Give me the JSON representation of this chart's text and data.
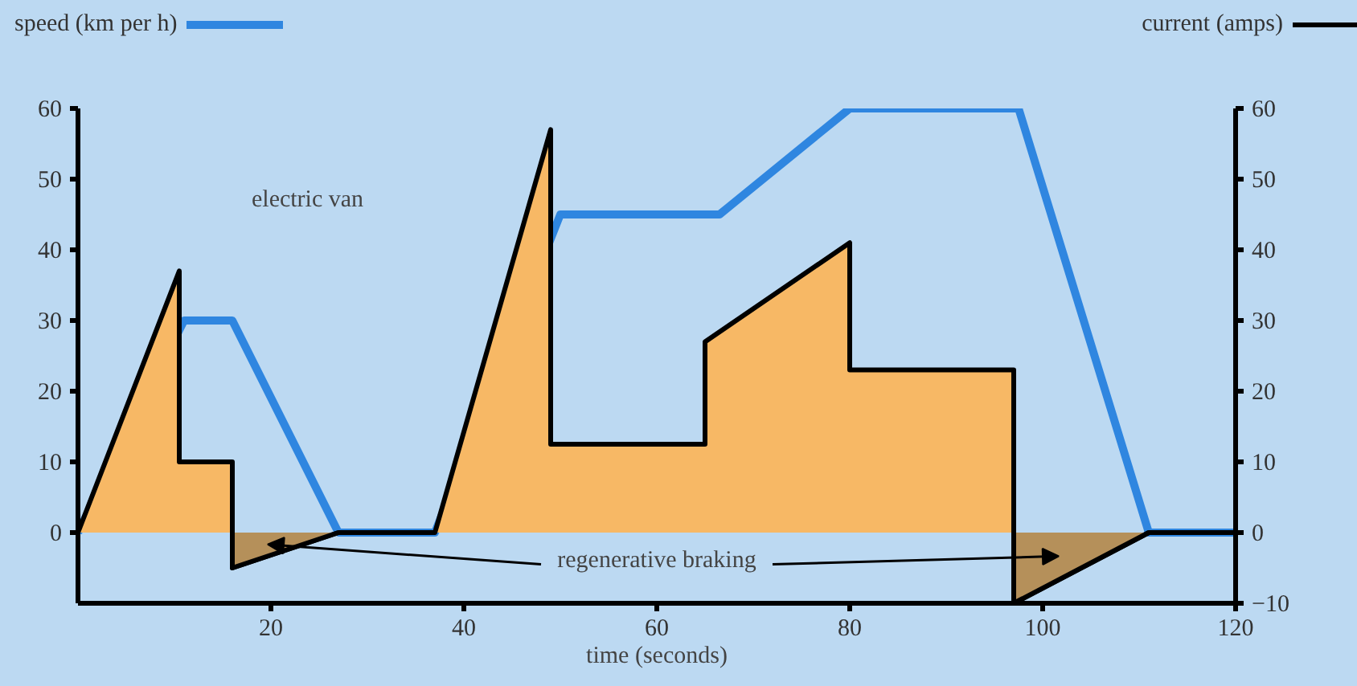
{
  "chart_data": {
    "type": "area",
    "xlabel": "time (seconds)",
    "ylabel": "speed (km per h)",
    "y2label": "current (amps)",
    "xlim": [
      0,
      120
    ],
    "xticks": [
      20,
      40,
      60,
      80,
      100,
      120
    ],
    "ylim": [
      -10,
      60
    ],
    "yticks": [
      0,
      10,
      20,
      30,
      40,
      50,
      60
    ],
    "y2lim": [
      -10,
      60
    ],
    "y2ticks": [
      -10,
      0,
      10,
      20,
      30,
      40,
      50,
      60
    ],
    "series": [
      {
        "type": "line",
        "color": "#2f86e0",
        "x": [
          0,
          11,
          16,
          27,
          37,
          50,
          66.5,
          80,
          97.5,
          111,
          120
        ],
        "values": [
          0,
          30,
          30,
          0,
          0,
          45,
          45,
          60,
          60,
          0,
          0
        ]
      },
      {
        "color": "#f7b865",
        "x": [
          0,
          10.5,
          10.5,
          16,
          16,
          27,
          37,
          49,
          49,
          65,
          65,
          80,
          80,
          97,
          97,
          111,
          120
        ],
        "values": [
          0,
          37,
          10,
          10,
          -5,
          0,
          0,
          57,
          12.5,
          12.5,
          27,
          41,
          23,
          23,
          -10,
          0,
          0
        ]
      },
      {
        "color": "#b5905a",
        "x": [
          16,
          16,
          27,
          60,
          97,
          97,
          111
        ],
        "values": [
          0,
          -5,
          0,
          null,
          0,
          -10,
          0
        ]
      }
    ],
    "annotations": [
      "electric van",
      "regenerative braking"
    ]
  }
}
